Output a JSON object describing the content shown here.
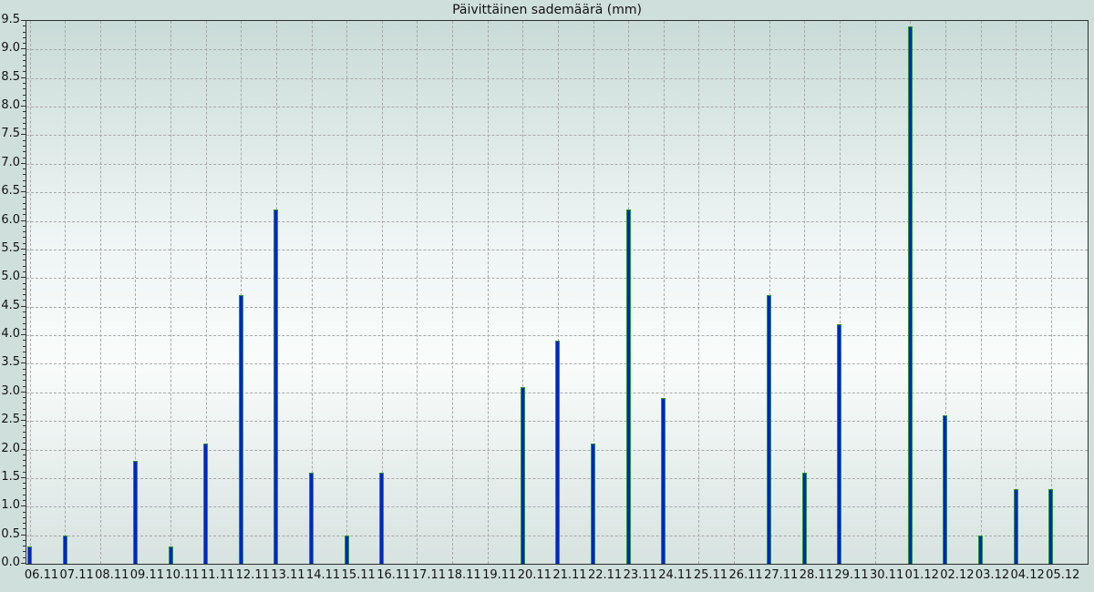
{
  "chart_data": {
    "type": "bar",
    "title": "Päivittäinen sademäärä (mm)",
    "categories": [
      "06.11",
      "07.11",
      "08.11",
      "09.11",
      "10.11",
      "11.11",
      "12.11",
      "13.11",
      "14.11",
      "15.11",
      "16.11",
      "17.11",
      "18.11",
      "19.11",
      "20.11",
      "21.11",
      "22.11",
      "23.11",
      "24.11",
      "25.11",
      "26.11",
      "27.11",
      "28.11",
      "29.11",
      "30.11",
      "01.12",
      "02.12",
      "03.12",
      "04.12",
      "05.12"
    ],
    "values": [
      0.3,
      0.5,
      0,
      1.8,
      0.3,
      2.1,
      4.7,
      6.2,
      1.6,
      0.5,
      1.6,
      0,
      0,
      0,
      3.1,
      3.9,
      2.1,
      6.2,
      2.9,
      0,
      0,
      4.7,
      1.6,
      4.2,
      0,
      9.4,
      2.6,
      0.5,
      1.3,
      1.3
    ],
    "xlabel": "",
    "ylabel": "",
    "ylim": [
      0,
      9.5
    ],
    "ytick_step": 0.5,
    "yminor_step": 0.1,
    "ytick_labels": [
      "0.0",
      "0.5",
      "1.0",
      "1.5",
      "2.0",
      "2.5",
      "3.0",
      "3.5",
      "4.0",
      "4.5",
      "5.0",
      "5.5",
      "6.0",
      "6.5",
      "7.0",
      "7.5",
      "8.0",
      "8.5",
      "9.0",
      "9.5"
    ],
    "grid": "dashed-both-axes",
    "legend": "none",
    "colors": {
      "bar_fill": "#0021d6",
      "bar_edge": "#259a28",
      "outer_background": "#cfdfdc",
      "plot_bg_top": "#c9dbd8",
      "plot_bg_light": "#f9fcfb",
      "plot_bg_bottom": "#d7e3e0",
      "gridline": "#a9a9a9",
      "frame": "#303030",
      "text": "#111111"
    }
  }
}
